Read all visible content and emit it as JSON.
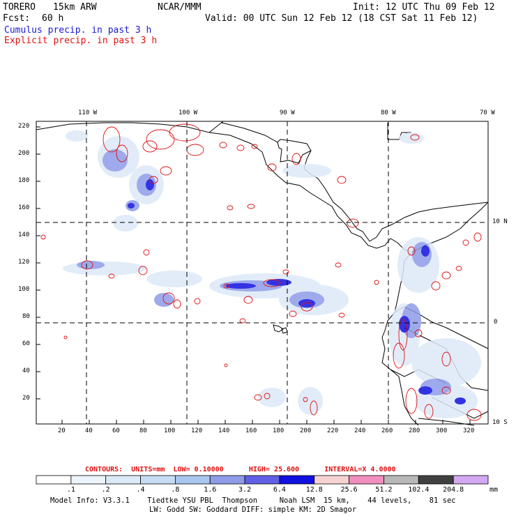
{
  "header": {
    "model_name": "TORERO",
    "resolution": "15km ARW",
    "org": "NCAR/MMM",
    "init": "Init: 12 UTC Thu 09 Feb 12",
    "fcst_label": "Fcst:",
    "fcst_hours": "60 h",
    "valid": "Valid: 00 UTC Sun 12 Feb 12 (18 CST Sat 11 Feb 12)",
    "cumulus": "Cumulus precip. in past 3 h",
    "explicit": "Explicit precip. in past 3 h"
  },
  "colors": {
    "cumulus": "#1a1ad0",
    "explicit": "#e01010",
    "coast": "#000000",
    "grid": "#000000"
  },
  "axes": {
    "lon_labels": [
      "110 W",
      "100 W",
      "90 W",
      "80 W",
      "70 W"
    ],
    "lat_labels": [
      "10 N",
      "0",
      "10 S"
    ],
    "y_ticks": [
      "220",
      "200",
      "180",
      "160",
      "140",
      "120",
      "100",
      "80",
      "60",
      "40",
      "20"
    ],
    "x_ticks": [
      "20",
      "40",
      "60",
      "80",
      "100",
      "120",
      "140",
      "160",
      "180",
      "200",
      "220",
      "240",
      "260",
      "280",
      "300",
      "320"
    ]
  },
  "contour_info": {
    "contours_label": "CONTOURS:",
    "units": "UNITS=mm",
    "low": "LOW= 0.10000",
    "high": "HIGH= 25.600",
    "interval": "INTERVAL=X 4.0000"
  },
  "legend": {
    "colors": [
      "#ffffff",
      "#eef4fb",
      "#dce9f7",
      "#c6dcf4",
      "#a9c6ee",
      "#8e9ce8",
      "#6060e6",
      "#1010e0",
      "#f7d2d2",
      "#f08fbd",
      "#b8b8b8",
      "#404040",
      "#d2a8f2"
    ],
    "labels": [
      ".1",
      ".2",
      ".4",
      ".8",
      "1.6",
      "3.2",
      "6.4",
      "12.8",
      "25.6",
      "51.2",
      "102.4",
      "204.8"
    ],
    "unit": "mm"
  },
  "model_info": {
    "line1": "Model Info: V3.3.1    Tiedtke YSU PBL  Thompson     Noah LSM  15 km,    44 levels,    81 sec",
    "line2": "LW: Godd SW: Goddard DIFF: simple KM: 2D Smagor"
  }
}
